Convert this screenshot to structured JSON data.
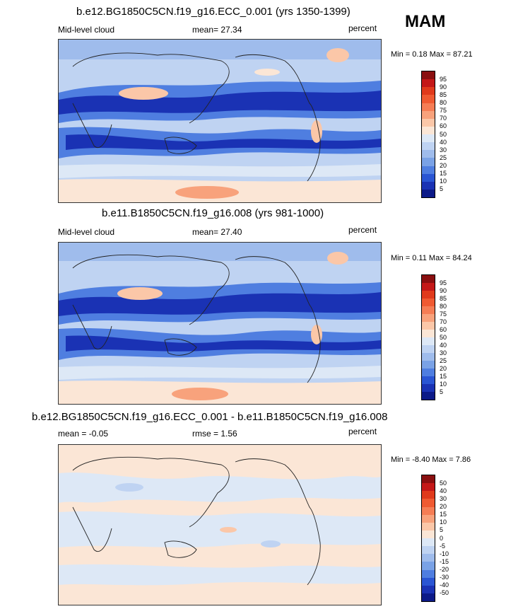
{
  "season": "MAM",
  "panels": [
    {
      "id": "top",
      "title": "b.e12.BG1850C5CN.f19_g16.ECC_0.001 (yrs 1350-1399)",
      "left_label": "Mid-level cloud",
      "center_label": "mean=  27.34",
      "right_label": "percent",
      "minmax": "Min =   0.18 Max =  87.21",
      "colorbar_ticks": [
        "95",
        "90",
        "85",
        "80",
        "75",
        "70",
        "60",
        "50",
        "40",
        "30",
        "25",
        "20",
        "15",
        "10",
        "5"
      ],
      "colorbar_colors": [
        "#8a0f10",
        "#c41818",
        "#e03a1c",
        "#ef5a32",
        "#f57d55",
        "#f8a27c",
        "#fbc7a8",
        "#fbe6d6",
        "#dde8f6",
        "#bfd3f2",
        "#9fbcec",
        "#7aa2e6",
        "#4f7ee0",
        "#2a55d3",
        "#1a32b4",
        "#0c1a88"
      ]
    },
    {
      "id": "middle",
      "title": "b.e11.B1850C5CN.f19_g16.008 (yrs 981-1000)",
      "left_label": "Mid-level cloud",
      "center_label": "mean=  27.40",
      "right_label": "percent",
      "minmax": "Min =   0.11 Max =  84.24",
      "colorbar_ticks": [
        "95",
        "90",
        "85",
        "80",
        "75",
        "70",
        "60",
        "50",
        "40",
        "30",
        "25",
        "20",
        "15",
        "10",
        "5"
      ],
      "colorbar_colors": [
        "#8a0f10",
        "#c41818",
        "#e03a1c",
        "#ef5a32",
        "#f57d55",
        "#f8a27c",
        "#fbc7a8",
        "#fbe6d6",
        "#dde8f6",
        "#bfd3f2",
        "#9fbcec",
        "#7aa2e6",
        "#4f7ee0",
        "#2a55d3",
        "#1a32b4",
        "#0c1a88"
      ]
    },
    {
      "id": "bottom",
      "title": "b.e12.BG1850C5CN.f19_g16.ECC_0.001 - b.e11.B1850C5CN.f19_g16.008",
      "left_label": "mean =  -0.05",
      "center_label": "rmse =   1.56",
      "right_label": "percent",
      "minmax": "Min =  -8.40 Max =   7.86",
      "colorbar_ticks": [
        "50",
        "40",
        "30",
        "20",
        "15",
        "10",
        "5",
        "0",
        "-5",
        "-10",
        "-15",
        "-20",
        "-30",
        "-40",
        "-50"
      ],
      "colorbar_colors": [
        "#8a0f10",
        "#c41818",
        "#e03a1c",
        "#ef5a32",
        "#f57d55",
        "#f8a27c",
        "#fbc7a8",
        "#fbe6d6",
        "#dde8f6",
        "#bfd3f2",
        "#9fbcec",
        "#7aa2e6",
        "#4f7ee0",
        "#2a55d3",
        "#1a32b4",
        "#0c1a88"
      ]
    }
  ]
}
